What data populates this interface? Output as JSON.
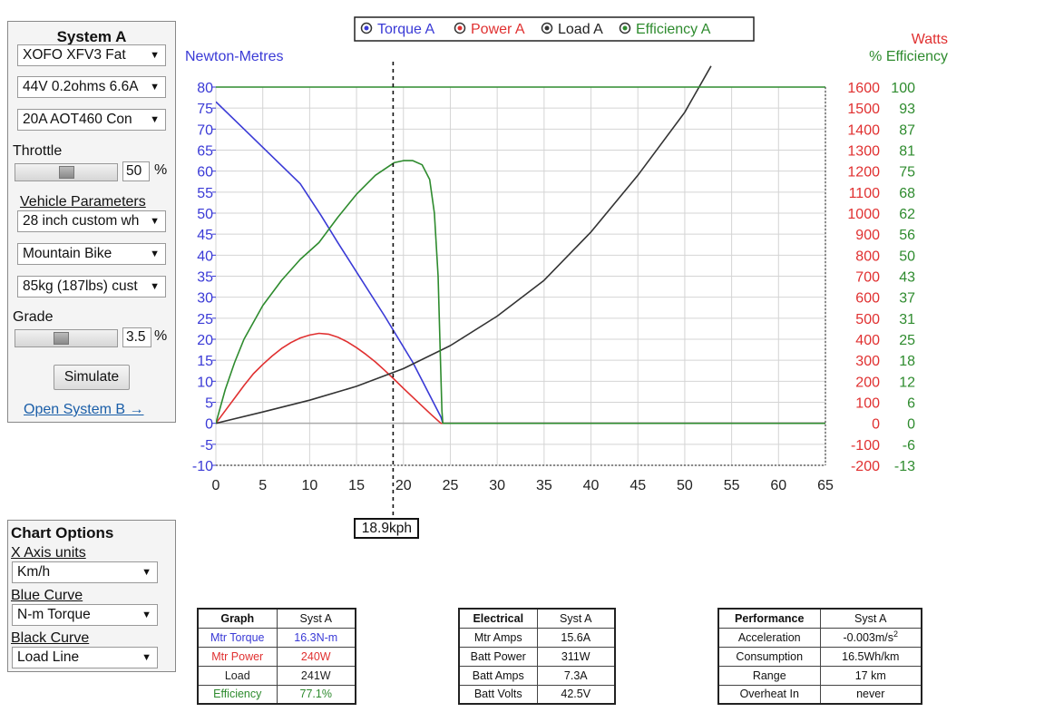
{
  "system_a": {
    "title": "System A",
    "motor": "XOFO XFV3 Fat",
    "battery": "44V 0.2ohms 6.6A",
    "controller": "20A AOT460 Con",
    "throttle_label": "Throttle",
    "throttle_value": "50",
    "throttle_unit": "%",
    "throttle_fraction": 0.5,
    "vehicle_params_label": "Vehicle Parameters",
    "wheel": "28 inch custom wh",
    "bike_type": "Mountain Bike",
    "weight": "85kg (187lbs) cust",
    "grade_label": "Grade",
    "grade_value": "3.5",
    "grade_unit": "%",
    "simulate_label": "Simulate",
    "open_b_label": "Open System B →"
  },
  "chart_options": {
    "title": "Chart Options",
    "x_axis_label": "X Axis units",
    "x_axis_value": "Km/h",
    "blue_label": "Blue Curve",
    "blue_value": "N-m Torque",
    "black_label": "Black Curve",
    "black_value": "Load Line"
  },
  "legend": [
    "Torque A",
    "Power A",
    "Load A",
    "Efficiency A"
  ],
  "colors": {
    "torque": "#3a3ad6",
    "power": "#e03030",
    "load": "#333333",
    "efficiency": "#2e8b2e"
  },
  "cursor_label": "18.9kph",
  "chart_data": {
    "type": "line",
    "xlabel": "",
    "ylabel": "Newton-Metres",
    "y2label": "Watts",
    "y3label": "% Efficiency",
    "xlim": [
      0,
      65
    ],
    "ylim": [
      -10,
      80
    ],
    "x_ticks": [
      0,
      5,
      10,
      15,
      20,
      25,
      30,
      35,
      40,
      45,
      50,
      55,
      60,
      65
    ],
    "y_ticks": [
      -10,
      -5,
      0,
      5,
      10,
      15,
      20,
      25,
      30,
      35,
      40,
      45,
      50,
      55,
      60,
      65,
      70,
      75,
      80
    ],
    "watts_ticks": [
      "1600",
      "1500",
      "1400",
      "1300",
      "1200",
      "1100",
      "1000",
      "900",
      "800",
      "700",
      "600",
      "500",
      "400",
      "300",
      "200",
      "100",
      "0",
      "-100",
      "-200"
    ],
    "eff_ticks": [
      "100",
      "93",
      "87",
      "81",
      "75",
      "68",
      "62",
      "56",
      "50",
      "43",
      "37",
      "31",
      "25",
      "18",
      "12",
      "6",
      "0",
      "-6",
      "-13"
    ],
    "cursor_x": 18.9,
    "series": [
      {
        "name": "Torque A",
        "color": "#3a3ad6",
        "points": [
          [
            0,
            76.5
          ],
          [
            3,
            70
          ],
          [
            6,
            63.5
          ],
          [
            9,
            57
          ],
          [
            11.2,
            49.5
          ],
          [
            13,
            43
          ],
          [
            15,
            36
          ],
          [
            18,
            25.5
          ],
          [
            21,
            14.5
          ],
          [
            24,
            1.5
          ],
          [
            24.2,
            0
          ],
          [
            65,
            0
          ]
        ]
      },
      {
        "name": "Power A",
        "color": "#e03030",
        "points": [
          [
            0,
            0
          ],
          [
            1,
            3
          ],
          [
            2,
            6
          ],
          [
            3,
            9
          ],
          [
            4,
            11.8
          ],
          [
            5,
            14
          ],
          [
            6,
            16
          ],
          [
            7,
            17.8
          ],
          [
            8,
            19.2
          ],
          [
            9,
            20.3
          ],
          [
            10,
            21
          ],
          [
            11,
            21.4
          ],
          [
            12,
            21.2
          ],
          [
            13,
            20.5
          ],
          [
            14,
            19.4
          ],
          [
            15,
            18
          ],
          [
            16,
            16.4
          ],
          [
            17,
            14.6
          ],
          [
            18,
            12.6
          ],
          [
            19,
            10.5
          ],
          [
            20,
            8.3
          ],
          [
            21,
            6.2
          ],
          [
            22,
            4.1
          ],
          [
            23,
            2
          ],
          [
            24,
            0
          ],
          [
            65,
            0
          ]
        ]
      },
      {
        "name": "Load A",
        "color": "#333333",
        "points": [
          [
            0,
            0
          ],
          [
            5,
            2.7
          ],
          [
            10,
            5.5
          ],
          [
            15,
            8.8
          ],
          [
            20,
            13
          ],
          [
            25,
            18.5
          ],
          [
            30,
            25.5
          ],
          [
            35,
            34
          ],
          [
            40,
            45.5
          ],
          [
            45,
            59
          ],
          [
            50,
            74
          ],
          [
            52.8,
            85
          ]
        ]
      },
      {
        "name": "Efficiency A",
        "color": "#2e8b2e",
        "points": [
          [
            0,
            0
          ],
          [
            1,
            8
          ],
          [
            2,
            14.5
          ],
          [
            3,
            20
          ],
          [
            5,
            28
          ],
          [
            7,
            34
          ],
          [
            9,
            39
          ],
          [
            11,
            43
          ],
          [
            13,
            49
          ],
          [
            15,
            54.5
          ],
          [
            17,
            59
          ],
          [
            19,
            62
          ],
          [
            20,
            62.5
          ],
          [
            21,
            62.5
          ],
          [
            22,
            61.5
          ],
          [
            22.8,
            58
          ],
          [
            23.3,
            50
          ],
          [
            23.7,
            35
          ],
          [
            23.95,
            15
          ],
          [
            24.1,
            3
          ],
          [
            24.2,
            0
          ],
          [
            65,
            0
          ]
        ]
      },
      {
        "name": "",
        "color": "#2e8b2e",
        "points": [
          [
            0,
            80
          ],
          [
            65,
            80
          ]
        ]
      }
    ]
  },
  "graph_table": {
    "headers": [
      "Graph",
      "Syst A"
    ],
    "rows": [
      {
        "label": "Mtr Torque",
        "value": "16.3N-m",
        "color": "#3a3ad6"
      },
      {
        "label": "Mtr Power",
        "value": "240W",
        "color": "#e03030"
      },
      {
        "label": "Load",
        "value": "241W",
        "color": "#222222"
      },
      {
        "label": "Efficiency",
        "value": "77.1%",
        "color": "#2e8b2e"
      }
    ]
  },
  "electrical_table": {
    "headers": [
      "Electrical",
      "Syst A"
    ],
    "rows": [
      {
        "label": "Mtr Amps",
        "value": "15.6A"
      },
      {
        "label": "Batt Power",
        "value": "311W"
      },
      {
        "label": "Batt Amps",
        "value": "7.3A"
      },
      {
        "label": "Batt Volts",
        "value": "42.5V"
      }
    ]
  },
  "performance_table": {
    "headers": [
      "Performance",
      "Syst A"
    ],
    "rows": [
      {
        "label": "Acceleration",
        "value": "-0.003m/s",
        "sup": "2"
      },
      {
        "label": "Consumption",
        "value": "16.5Wh/km"
      },
      {
        "label": "Range",
        "value": "17 km"
      },
      {
        "label": "Overheat In",
        "value": "never"
      }
    ]
  }
}
